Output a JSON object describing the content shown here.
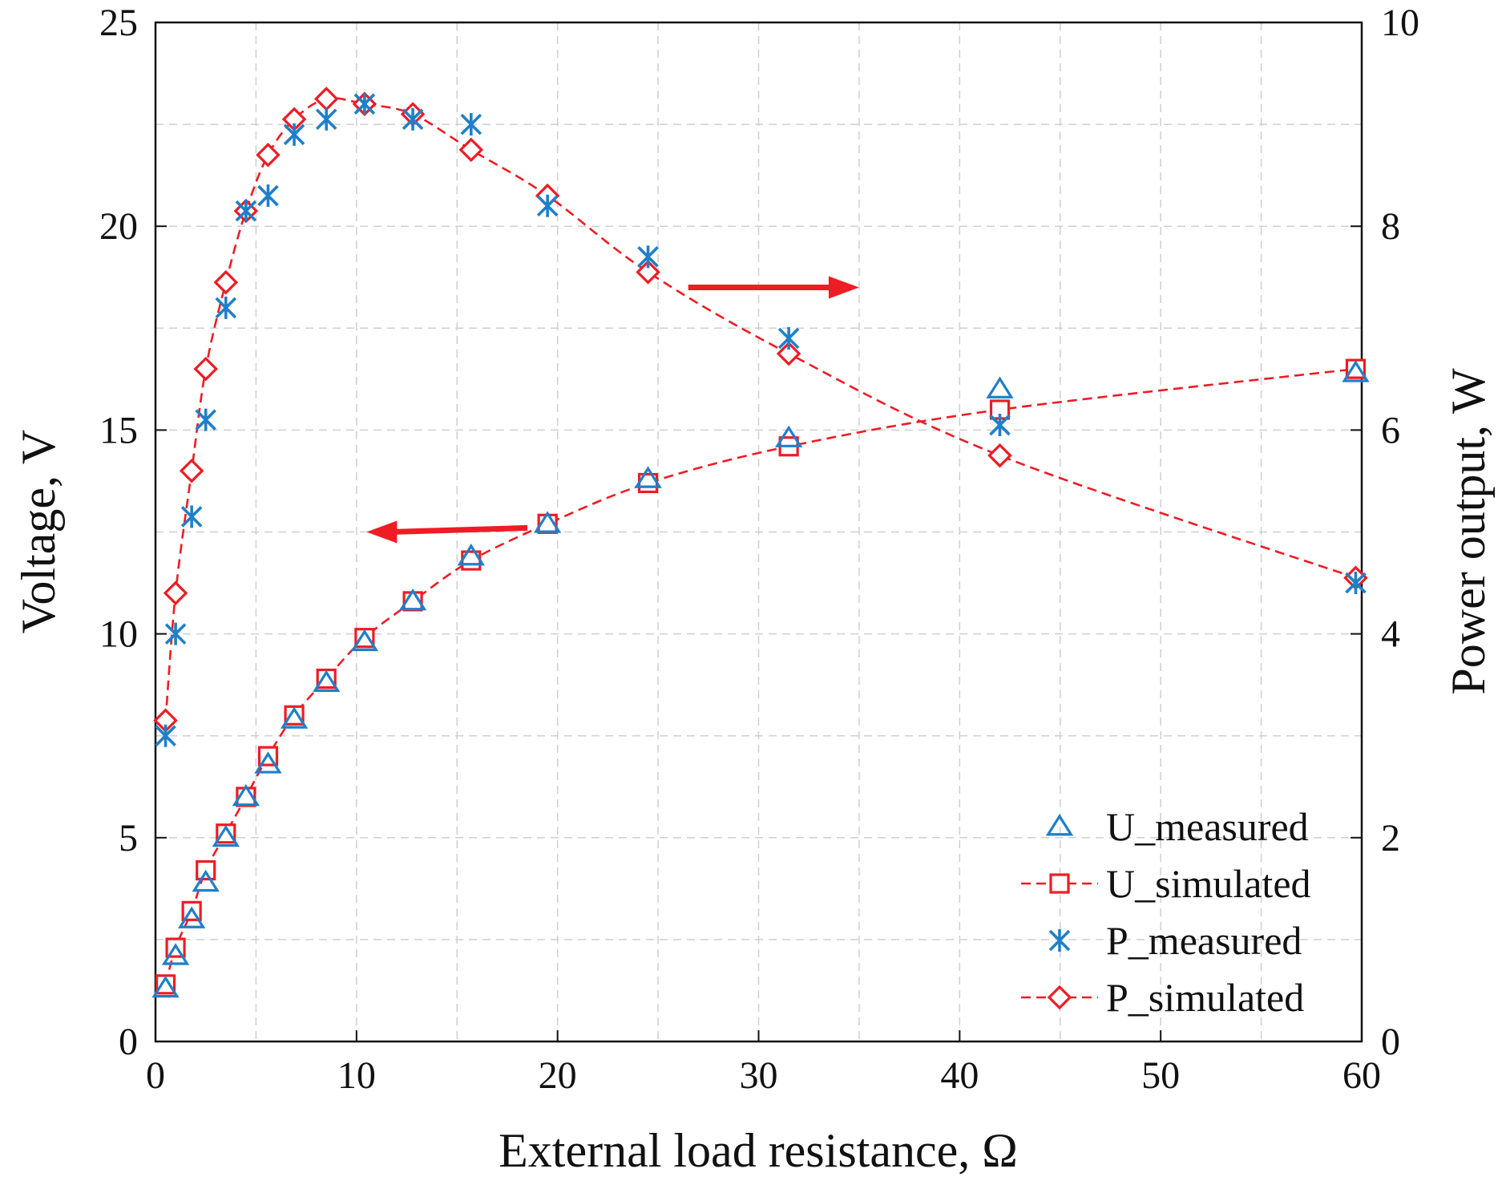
{
  "chart_data": {
    "type": "line",
    "title": "",
    "xlabel": "External load resistance, Ω",
    "ylabel": "Voltage, V",
    "y2label": "Power output, W",
    "xlim": [
      0,
      60
    ],
    "ylim": [
      0,
      25
    ],
    "y2lim": [
      0,
      10
    ],
    "xticks": [
      "0",
      "10",
      "20",
      "30",
      "40",
      "50",
      "60"
    ],
    "yticks": [
      "0",
      "5",
      "10",
      "15",
      "20",
      "25"
    ],
    "y2ticks": [
      "0",
      "2",
      "4",
      "6",
      "8",
      "10"
    ],
    "grid": true,
    "legend_position": "bottom-right",
    "colors": {
      "measured": "#1f7fc9",
      "simulated": "#ee1c24"
    },
    "series": [
      {
        "name": "U_measured",
        "axis": "left",
        "marker": "triangle",
        "line": "none",
        "x": [
          0.5,
          1.0,
          1.8,
          2.5,
          3.5,
          4.5,
          5.6,
          6.9,
          8.5,
          10.4,
          12.8,
          15.7,
          19.5,
          24.5,
          31.5,
          42.0,
          59.7
        ],
        "y": [
          1.3,
          2.1,
          3.0,
          3.9,
          5.0,
          6.0,
          6.8,
          7.9,
          8.8,
          9.8,
          10.8,
          11.9,
          12.7,
          13.8,
          14.8,
          16.0,
          16.4
        ]
      },
      {
        "name": "U_simulated",
        "axis": "left",
        "marker": "square",
        "line": "dashed",
        "x": [
          0.5,
          1.0,
          1.8,
          2.5,
          3.5,
          4.5,
          5.6,
          6.9,
          8.5,
          10.4,
          12.8,
          15.7,
          19.5,
          24.5,
          31.5,
          42.0,
          59.7
        ],
        "y": [
          1.4,
          2.3,
          3.2,
          4.2,
          5.1,
          6.0,
          7.0,
          8.0,
          8.9,
          9.9,
          10.8,
          11.8,
          12.7,
          13.7,
          14.6,
          15.5,
          16.5
        ]
      },
      {
        "name": "P_measured",
        "axis": "right",
        "marker": "asterisk",
        "line": "none",
        "x": [
          0.5,
          1.0,
          1.8,
          2.5,
          3.5,
          4.5,
          5.6,
          6.9,
          8.5,
          10.4,
          12.8,
          15.7,
          19.5,
          24.5,
          31.5,
          42.0,
          59.7
        ],
        "y": [
          3.0,
          4.0,
          5.15,
          6.1,
          7.2,
          8.15,
          8.3,
          8.9,
          9.05,
          9.2,
          9.05,
          9.0,
          8.2,
          7.7,
          6.9,
          6.05,
          4.5
        ]
      },
      {
        "name": "P_simulated",
        "axis": "right",
        "marker": "diamond",
        "line": "dashed",
        "x": [
          0.5,
          1.0,
          1.8,
          2.5,
          3.5,
          4.5,
          5.6,
          6.9,
          8.5,
          10.4,
          12.8,
          15.7,
          19.5,
          24.5,
          31.5,
          42.0,
          59.7
        ],
        "y": [
          3.15,
          4.4,
          5.6,
          6.6,
          7.45,
          8.15,
          8.7,
          9.05,
          9.25,
          9.2,
          9.1,
          8.75,
          8.3,
          7.55,
          6.75,
          5.75,
          4.55
        ]
      }
    ],
    "annotations": [
      {
        "type": "arrow",
        "direction": "right",
        "meaning": "P series read on right axis",
        "from": [
          26.5,
          18.5
        ],
        "to": [
          35,
          18.5
        ]
      },
      {
        "type": "arrow",
        "direction": "left",
        "meaning": "U series read on left axis",
        "from": [
          18.5,
          12.6
        ],
        "to": [
          10.5,
          12.5
        ]
      }
    ]
  }
}
